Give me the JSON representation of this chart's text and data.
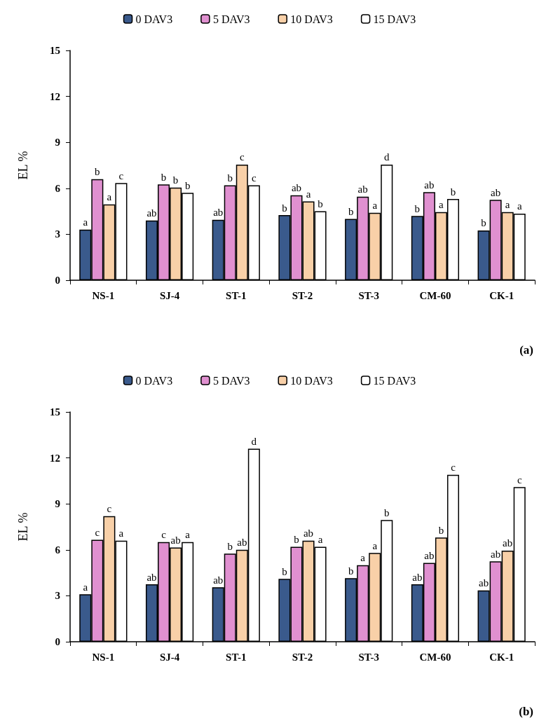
{
  "chart_data": [
    {
      "type": "bar",
      "categories": [
        "NS-1",
        "SJ-4",
        "ST-1",
        "ST-2",
        "ST-3",
        "CM-60",
        "CK-1"
      ],
      "ylabel": "EL %",
      "ylim": [
        0,
        15
      ],
      "yticks": [
        0,
        3,
        6,
        9,
        12,
        15
      ],
      "grid": false,
      "legend": "top",
      "annotations": [
        "(a)"
      ],
      "series": [
        {
          "name": "0 DAV3",
          "color": "#3a5a8c",
          "values": [
            3.3,
            3.9,
            3.95,
            4.25,
            4.0,
            4.2,
            3.25
          ],
          "value_labels": [
            "a",
            "ab",
            "ab",
            "b",
            "b",
            "b",
            "b"
          ]
        },
        {
          "name": "5 DAV3",
          "color": "#e090d0",
          "values": [
            6.6,
            6.25,
            6.2,
            5.55,
            5.45,
            5.75,
            5.25
          ],
          "value_labels": [
            "b",
            "b",
            "b",
            "ab",
            "ab",
            "ab",
            "ab"
          ]
        },
        {
          "name": "10 DAV3",
          "color": "#f8d0a8",
          "values": [
            4.95,
            6.05,
            7.55,
            5.15,
            4.4,
            4.45,
            4.45
          ],
          "value_labels": [
            "a",
            "b",
            "c",
            "a",
            "a",
            "a",
            "a"
          ]
        },
        {
          "name": "15 DAV3",
          "color": "#ffffff",
          "values": [
            6.35,
            5.7,
            6.2,
            4.5,
            7.55,
            5.3,
            4.35
          ],
          "value_labels": [
            "c",
            "b",
            "c",
            "b",
            "d",
            "b",
            "a"
          ]
        }
      ]
    },
    {
      "type": "bar",
      "categories": [
        "NS-1",
        "SJ-4",
        "ST-1",
        "ST-2",
        "ST-3",
        "CM-60",
        "CK-1"
      ],
      "ylabel": "EL %",
      "ylim": [
        0,
        15
      ],
      "yticks": [
        0,
        3,
        6,
        9,
        12,
        15
      ],
      "grid": false,
      "legend": "top",
      "annotations": [
        "(b)"
      ],
      "series": [
        {
          "name": "0 DAV3",
          "color": "#3a5a8c",
          "values": [
            3.1,
            3.75,
            3.55,
            4.1,
            4.15,
            3.75,
            3.35
          ],
          "value_labels": [
            "a",
            "ab",
            "ab",
            "b",
            "b",
            "ab",
            "ab"
          ]
        },
        {
          "name": "5 DAV3",
          "color": "#e090d0",
          "values": [
            6.65,
            6.5,
            5.75,
            6.2,
            5.0,
            5.15,
            5.25
          ],
          "value_labels": [
            "c",
            "c",
            "b",
            "b",
            "a",
            "ab",
            "ab"
          ]
        },
        {
          "name": "10 DAV3",
          "color": "#f8d0a8",
          "values": [
            8.2,
            6.15,
            6.0,
            6.6,
            5.8,
            6.8,
            5.95
          ],
          "value_labels": [
            "c",
            "ab",
            "ab",
            "ab",
            "a",
            "b",
            "ab"
          ]
        },
        {
          "name": "15 DAV3",
          "color": "#ffffff",
          "values": [
            6.6,
            6.5,
            12.6,
            6.2,
            7.95,
            10.9,
            10.1
          ],
          "value_labels": [
            "a",
            "a",
            "d",
            "a",
            "b",
            "c",
            "c"
          ]
        }
      ]
    }
  ]
}
